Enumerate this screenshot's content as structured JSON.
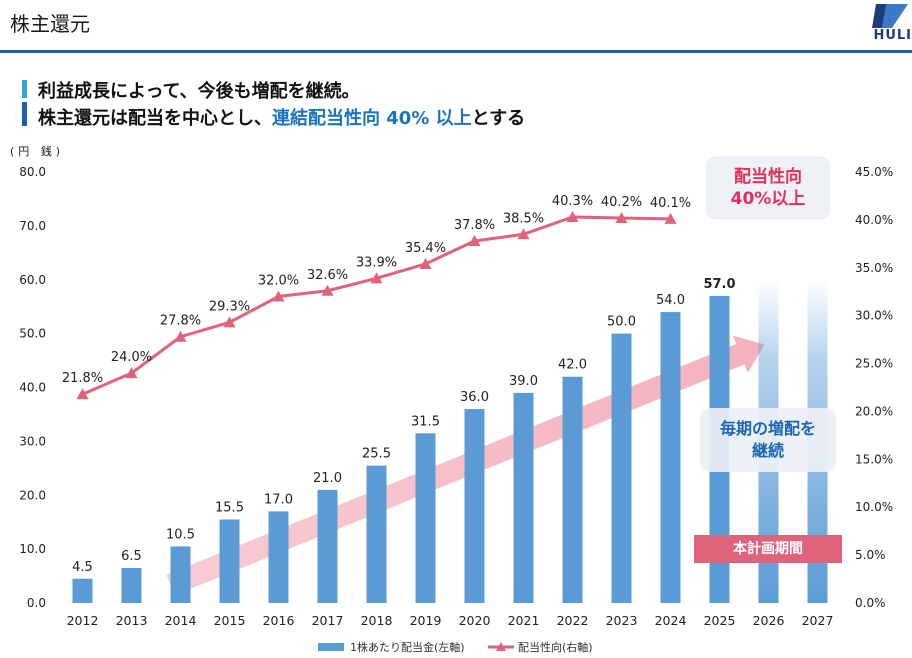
{
  "header": {
    "title": "株主還元",
    "logo_text": "HULI"
  },
  "headline": {
    "line1": "利益成長によって、今後も増配を継続。",
    "line2_prefix": "株主還元は配当を中心とし、",
    "line2_highlight": "連結配当性向 40% 以上",
    "line2_suffix": "とする"
  },
  "units": {
    "left_axis": "(円 銭)"
  },
  "callouts": {
    "payout_line1": "配当性向",
    "payout_line2": "40%以上",
    "increase_line1": "毎期の増配を",
    "increase_line2": "継続",
    "plan_period": "本計画期間"
  },
  "colors": {
    "bar": "#5b9bd5",
    "line": "#e0627b",
    "accent_blue": "#1b73c2",
    "accent_red": "#e0315a"
  },
  "chart_data": {
    "type": "bar",
    "categories": [
      "2012",
      "2013",
      "2014",
      "2015",
      "2016",
      "2017",
      "2018",
      "2019",
      "2020",
      "2021",
      "2022",
      "2023",
      "2024",
      "2025",
      "2026",
      "2027"
    ],
    "series": [
      {
        "name": "1株あたり配当金(左軸)",
        "type": "bar",
        "axis": "left",
        "values": [
          4.5,
          6.5,
          10.5,
          15.5,
          17.0,
          21.0,
          25.5,
          31.5,
          36.0,
          39.0,
          42.0,
          50.0,
          54.0,
          57.0,
          null,
          null
        ],
        "labels": [
          "4.5",
          "6.5",
          "10.5",
          "15.5",
          "17.0",
          "21.0",
          "25.5",
          "31.5",
          "36.0",
          "39.0",
          "42.0",
          "50.0",
          "54.0",
          "57.0",
          "",
          ""
        ]
      },
      {
        "name": "配当性向(右軸)",
        "type": "line",
        "axis": "right",
        "values": [
          21.8,
          24.0,
          27.8,
          29.3,
          32.0,
          32.6,
          33.9,
          35.4,
          37.8,
          38.5,
          40.3,
          40.2,
          40.1,
          null,
          null,
          null
        ],
        "labels": [
          "21.8%",
          "24.0%",
          "27.8%",
          "29.3%",
          "32.0%",
          "32.6%",
          "33.9%",
          "35.4%",
          "37.8%",
          "38.5%",
          "40.3%",
          "40.2%",
          "40.1%",
          "",
          "",
          ""
        ]
      }
    ],
    "projected_categories": [
      "2026",
      "2027"
    ],
    "y_left": {
      "min": 0,
      "max": 80,
      "step": 10,
      "tick_labels": [
        "0.0",
        "10.0",
        "20.0",
        "30.0",
        "40.0",
        "50.0",
        "60.0",
        "70.0",
        "80.0"
      ]
    },
    "y_right": {
      "min": 0,
      "max": 45,
      "step": 5,
      "tick_labels": [
        "0.0%",
        "5.0%",
        "10.0%",
        "15.0%",
        "20.0%",
        "25.0%",
        "30.0%",
        "35.0%",
        "40.0%",
        "45.0%"
      ]
    },
    "grid": false,
    "legend_position": "bottom"
  }
}
